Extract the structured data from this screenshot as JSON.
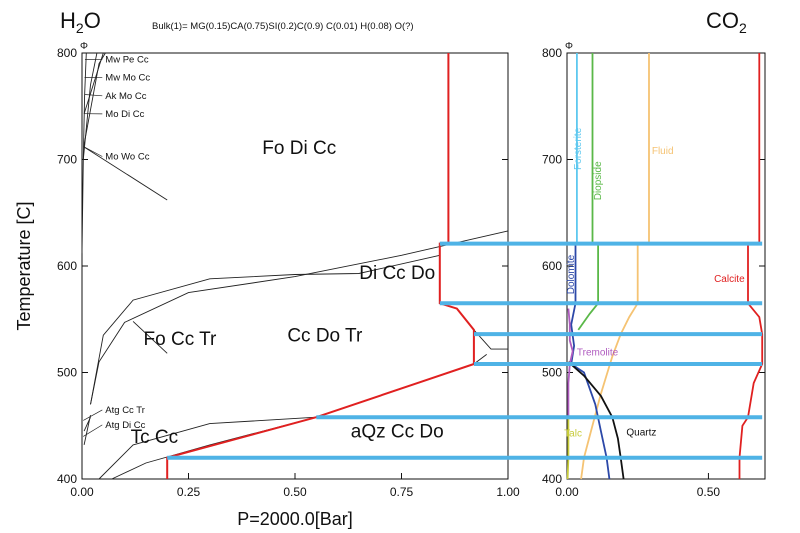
{
  "header": {
    "left_label": "H",
    "left_sub": "2",
    "left_tail": "O",
    "bulk": "Bulk(1)= MG(0.15)CA(0.75)SI(0.2)C(0.9) C(0.01) H(0.08) O(?)",
    "right_label": "CO",
    "right_sub": "2"
  },
  "colors": {
    "tie_line": "#4fb3e6",
    "boundary": "#e02020",
    "forsterite": "#5ec8ef",
    "diopside": "#5ab848",
    "fluid": "#f5c373",
    "calcite": "#e02020",
    "dolomite": "#2c48a8",
    "tremolite": "#b05cc0",
    "talc": "#c8cc3c",
    "quartz": "#111111"
  },
  "chart_data": [
    {
      "type": "line",
      "name": "pseudosection",
      "xlabel": "P=2000.0[Bar]",
      "ylabel": "Temperature [C]",
      "xlim": [
        0,
        1
      ],
      "ylim": [
        400,
        800
      ],
      "xticks": [
        0,
        0.25,
        0.5,
        0.75,
        1
      ],
      "xtick_labels": [
        "0.00",
        "0.25",
        "0.50",
        "0.75",
        "1.00"
      ],
      "yticks": [
        400,
        500,
        600,
        700,
        800
      ],
      "yaxis_symbol": "Φ",
      "small_field_labels": [
        {
          "text": "Mw Pe Cc",
          "x": 0.05,
          "y": 791,
          "lx": 0.007,
          "ly": 794
        },
        {
          "text": "Mw Mo Cc",
          "x": 0.05,
          "y": 774,
          "lx": 0.006,
          "ly": 777
        },
        {
          "text": "Ak Mo Cc",
          "x": 0.05,
          "y": 757,
          "lx": 0.006,
          "ly": 761
        },
        {
          "text": "Mo Di Cc",
          "x": 0.05,
          "y": 740,
          "lx": 0.005,
          "ly": 743
        },
        {
          "text": "Mo Wo Cc",
          "x": 0.05,
          "y": 700,
          "lx": 0.004,
          "ly": 712
        },
        {
          "text": "Atg Cc Tr",
          "x": 0.05,
          "y": 462,
          "lx": 0.003,
          "ly": 455
        },
        {
          "text": "Atg Di Cc",
          "x": 0.05,
          "y": 448,
          "lx": 0.003,
          "ly": 440
        }
      ],
      "field_labels": [
        {
          "text": "Fo Di Cc",
          "x": 0.51,
          "y": 705
        },
        {
          "text": "Di Cc Do",
          "x": 0.74,
          "y": 588
        },
        {
          "text": "Fo Cc Tr",
          "x": 0.23,
          "y": 526
        },
        {
          "text": "Cc Do Tr",
          "x": 0.57,
          "y": 529
        },
        {
          "text": "aQz Cc Do",
          "x": 0.74,
          "y": 439
        },
        {
          "text": "Tc Cc",
          "x": 0.17,
          "y": 434
        }
      ],
      "black_curves": [
        [
          [
            0,
            612
          ],
          [
            0.003,
            700
          ],
          [
            0.006,
            760
          ],
          [
            0.01,
            800
          ]
        ],
        [
          [
            0.003,
            700
          ],
          [
            0.02,
            770
          ],
          [
            0.035,
            800
          ]
        ],
        [
          [
            0.004,
            712
          ],
          [
            0.04,
            790
          ],
          [
            0.055,
            800
          ]
        ],
        [
          [
            0.005,
            743
          ],
          [
            0.05,
            800
          ]
        ],
        [
          [
            0.004,
            712
          ],
          [
            0.2,
            662
          ]
        ],
        [
          [
            0.02,
            470
          ],
          [
            0.05,
            535
          ],
          [
            0.12,
            568
          ],
          [
            0.3,
            588
          ],
          [
            0.5,
            592
          ],
          [
            0.65,
            593
          ],
          [
            0.84,
            610
          ]
        ],
        [
          [
            0.02,
            470
          ],
          [
            0.04,
            510
          ],
          [
            0.1,
            547
          ],
          [
            0.25,
            575
          ],
          [
            0.5,
            590
          ],
          [
            0.75,
            610
          ],
          [
            1.0,
            633
          ]
        ],
        [
          [
            0.12,
            548
          ],
          [
            0.2,
            518
          ]
        ],
        [
          [
            0.92,
            508
          ],
          [
            0.95,
            517
          ]
        ],
        [
          [
            0.92,
            540
          ],
          [
            0.96,
            522
          ],
          [
            1.0,
            522
          ]
        ],
        [
          [
            0.04,
            400
          ],
          [
            0.12,
            432
          ],
          [
            0.3,
            452
          ],
          [
            0.55,
            458
          ],
          [
            0.92,
            508
          ]
        ],
        [
          [
            0.07,
            400
          ],
          [
            0.15,
            415
          ],
          [
            0.3,
            432
          ],
          [
            0.55,
            458
          ]
        ],
        [
          [
            0.005,
            432
          ],
          [
            0.02,
            460
          ]
        ],
        [
          [
            0.005,
            445
          ],
          [
            0.02,
            458
          ]
        ]
      ],
      "red_boundary": [
        [
          0.86,
          800
        ],
        [
          0.86,
          621
        ],
        [
          0.84,
          621
        ],
        [
          0.84,
          565
        ],
        [
          0.88,
          560
        ],
        [
          0.92,
          540
        ],
        [
          0.92,
          508
        ],
        [
          0.55,
          458
        ],
        [
          0.2,
          420
        ],
        [
          0.2,
          400
        ]
      ],
      "tie_lines_T": [
        621,
        565,
        536,
        508,
        458,
        420
      ]
    },
    {
      "type": "line",
      "name": "phase-proportions",
      "xlim": [
        0,
        0.7
      ],
      "ylim": [
        400,
        800
      ],
      "xticks": [
        0,
        0.5
      ],
      "xtick_labels": [
        "0.00",
        "0.50"
      ],
      "yticks": [
        400,
        500,
        600,
        700,
        800
      ],
      "yaxis_symbol": "Φ",
      "tie_lines_T": [
        621,
        565,
        536,
        508,
        458,
        420
      ],
      "series": [
        {
          "name": "Forsterite",
          "color_key": "forsterite",
          "points": [
            [
              0.035,
              800
            ],
            [
              0.035,
              621
            ]
          ],
          "label_x": 0.05,
          "label_y": 710,
          "vertical": true
        },
        {
          "name": "Diopside",
          "color_key": "diopside",
          "points": [
            [
              0.09,
              800
            ],
            [
              0.09,
              621
            ],
            [
              0.11,
              621
            ],
            [
              0.11,
              565
            ],
            [
              0.08,
              555
            ],
            [
              0.04,
              540
            ]
          ],
          "label_x": 0.12,
          "label_y": 680,
          "vertical": true
        },
        {
          "name": "Fluid",
          "color_key": "fluid",
          "points": [
            [
              0.29,
              800
            ],
            [
              0.29,
              621
            ],
            [
              0.25,
              621
            ],
            [
              0.25,
              565
            ],
            [
              0.22,
              552
            ],
            [
              0.19,
              536
            ],
            [
              0.16,
              515
            ],
            [
              0.12,
              480
            ],
            [
              0.08,
              440
            ],
            [
              0.06,
              420
            ],
            [
              0.05,
              400
            ]
          ],
          "label_x": 0.3,
          "label_y": 705,
          "vertical": false
        },
        {
          "name": "Calcite",
          "color_key": "calcite",
          "points": [
            [
              0.68,
              800
            ],
            [
              0.68,
              621
            ],
            [
              0.64,
              621
            ],
            [
              0.64,
              565
            ],
            [
              0.68,
              552
            ],
            [
              0.69,
              536
            ],
            [
              0.69,
              508
            ],
            [
              0.66,
              490
            ],
            [
              0.64,
              458
            ],
            [
              0.62,
              450
            ],
            [
              0.61,
              420
            ],
            [
              0.61,
              400
            ]
          ],
          "label_x": 0.52,
          "label_y": 585,
          "vertical": false
        },
        {
          "name": "Dolomite",
          "color_key": "dolomite",
          "points": [
            [
              0.03,
              621
            ],
            [
              0.03,
              565
            ],
            [
              0.015,
              545
            ],
            [
              0.025,
              525
            ],
            [
              0.015,
              508
            ],
            [
              0.06,
              500
            ],
            [
              0.1,
              470
            ],
            [
              0.12,
              445
            ],
            [
              0.14,
              420
            ],
            [
              0.15,
              400
            ]
          ],
          "label_x": 0.025,
          "label_y": 592,
          "vertical": true
        },
        {
          "name": "Tremolite",
          "color_key": "tremolite",
          "points": [
            [
              0.005,
              560
            ],
            [
              0.01,
              545
            ],
            [
              0.01,
              530
            ],
            [
              0.02,
              520
            ],
            [
              0.01,
              508
            ],
            [
              0.005,
              490
            ],
            [
              0.005,
              458
            ]
          ],
          "label_x": 0.035,
          "label_y": 516,
          "vertical": false
        },
        {
          "name": "Talc",
          "color_key": "talc",
          "points": [
            [
              0.005,
              458
            ],
            [
              0.005,
              420
            ],
            [
              0.002,
              400
            ]
          ],
          "label_x": -0.01,
          "label_y": 440,
          "vertical": false
        },
        {
          "name": "Quartz",
          "color_key": "quartz",
          "points": [
            [
              0.005,
              510
            ],
            [
              0.06,
              497
            ],
            [
              0.12,
              478
            ],
            [
              0.16,
              458
            ],
            [
              0.18,
              438
            ],
            [
              0.19,
              420
            ],
            [
              0.2,
              400
            ]
          ],
          "label_x": 0.21,
          "label_y": 441,
          "vertical": false
        }
      ]
    }
  ]
}
